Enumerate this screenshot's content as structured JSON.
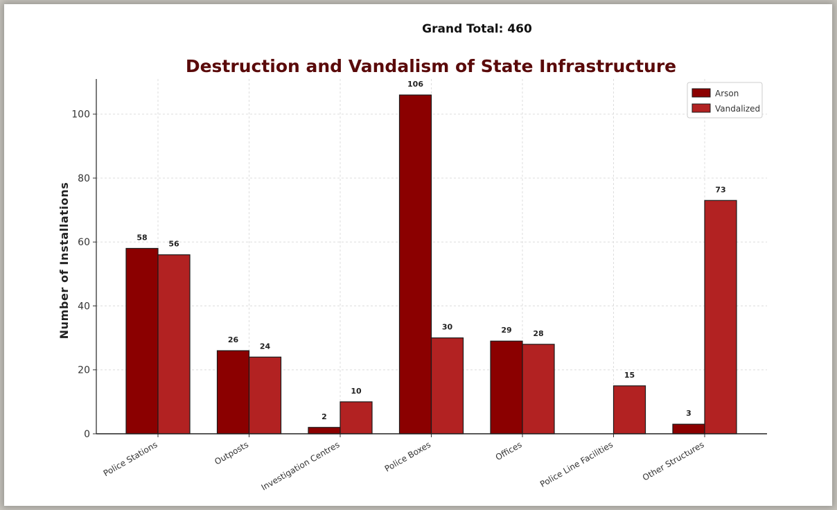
{
  "grand_total": "Grand Total: 460",
  "chart_data": {
    "type": "bar",
    "title": "Destruction and Vandalism of State Infrastructure",
    "xlabel": "",
    "ylabel": "Number of Installations",
    "ylim": [
      0,
      111
    ],
    "yticks": [
      0,
      20,
      40,
      60,
      80,
      100
    ],
    "grid": true,
    "legend_position": "top-right",
    "categories": [
      "Police Stations",
      "Outposts",
      "Investigation Centres",
      "Police Boxes",
      "Offices",
      "Police Line Facilities",
      "Other Structures"
    ],
    "series": [
      {
        "name": "Arson",
        "color": "#8b0000",
        "values": [
          58,
          26,
          2,
          106,
          29,
          null,
          3
        ]
      },
      {
        "name": "Vandalized",
        "color": "#b22222",
        "values": [
          56,
          24,
          10,
          30,
          28,
          15,
          73
        ]
      }
    ]
  }
}
